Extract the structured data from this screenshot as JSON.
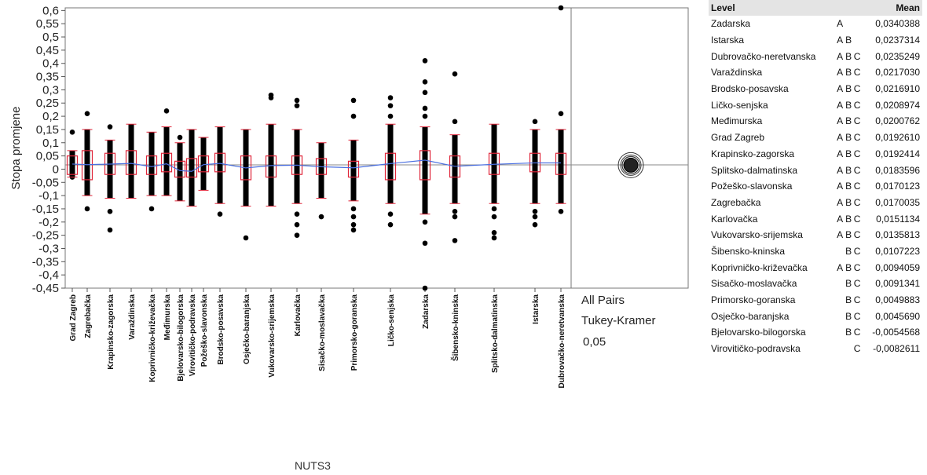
{
  "chart_data": {
    "type": "scatter",
    "ylabel": "Stopa promjene",
    "xlabel": "NUTS3",
    "ylim": [
      -0.45,
      0.61
    ],
    "yticks": [
      "0,6",
      "0,55",
      "0,5",
      "0,45",
      "0,4",
      "0,35",
      "0,3",
      "0,25",
      "0,2",
      "0,15",
      "0,1",
      "0,05",
      "0",
      "-0,05",
      "-0,1",
      "-0,15",
      "-0,2",
      "-0,25",
      "-0,3",
      "-0,35",
      "-0,4",
      "-0,45"
    ],
    "categories": [
      {
        "name": "Grad Zagreb",
        "x": 92,
        "mean": 0.019261,
        "q1": -0.02,
        "q3": 0.05,
        "wlo": -0.03,
        "whi": 0.07,
        "pts": [
          0.14,
          -0.03
        ]
      },
      {
        "name": "Zagrebačka",
        "x": 111,
        "mean": 0.0170035,
        "q1": -0.04,
        "q3": 0.07,
        "wlo": -0.1,
        "whi": 0.15,
        "pts": [
          0.21,
          -0.15
        ]
      },
      {
        "name": "Krapinsko-zagorska",
        "x": 140,
        "mean": 0.0192414,
        "q1": -0.02,
        "q3": 0.06,
        "wlo": -0.11,
        "whi": 0.11,
        "pts": [
          0.16,
          -0.16,
          -0.23
        ]
      },
      {
        "name": "Varaždinska",
        "x": 167,
        "mean": 0.021703,
        "q1": -0.02,
        "q3": 0.07,
        "wlo": -0.11,
        "whi": 0.17,
        "pts": []
      },
      {
        "name": "Koprivničko-križevačka",
        "x": 193,
        "mean": 0.0094059,
        "q1": -0.02,
        "q3": 0.05,
        "wlo": -0.1,
        "whi": 0.14,
        "pts": [
          -0.15
        ]
      },
      {
        "name": "Međimurska",
        "x": 212,
        "mean": 0.0200762,
        "q1": -0.01,
        "q3": 0.06,
        "wlo": -0.1,
        "whi": 0.16,
        "pts": [
          0.22
        ]
      },
      {
        "name": "Bjelovarsko-bilogorska",
        "x": 229,
        "mean": -0.0054568,
        "q1": -0.03,
        "q3": 0.03,
        "wlo": -0.12,
        "whi": 0.1,
        "pts": [
          0.12
        ]
      },
      {
        "name": "Virovitičko-podravska",
        "x": 244,
        "mean": -0.0082611,
        "q1": -0.03,
        "q3": 0.04,
        "wlo": -0.14,
        "whi": 0.15,
        "pts": []
      },
      {
        "name": "Požeško-slavonska",
        "x": 259,
        "mean": 0.0170123,
        "q1": -0.01,
        "q3": 0.05,
        "wlo": -0.08,
        "whi": 0.12,
        "pts": []
      },
      {
        "name": "Brodsko-posavska",
        "x": 280,
        "mean": 0.021691,
        "q1": -0.01,
        "q3": 0.06,
        "wlo": -0.13,
        "whi": 0.16,
        "pts": [
          -0.17
        ]
      },
      {
        "name": "Osječko-baranjska",
        "x": 313,
        "mean": 0.004569,
        "q1": -0.04,
        "q3": 0.05,
        "wlo": -0.14,
        "whi": 0.15,
        "pts": [
          -0.26
        ]
      },
      {
        "name": "Vukovarsko-srijemska",
        "x": 345,
        "mean": 0.0135813,
        "q1": -0.03,
        "q3": 0.05,
        "wlo": -0.14,
        "whi": 0.17,
        "pts": [
          0.27,
          0.28
        ]
      },
      {
        "name": "Karlovačka",
        "x": 378,
        "mean": 0.0151134,
        "q1": -0.02,
        "q3": 0.05,
        "wlo": -0.13,
        "whi": 0.15,
        "pts": [
          0.24,
          0.26,
          -0.17,
          -0.21,
          -0.25
        ]
      },
      {
        "name": "Sisačko-moslavačka",
        "x": 409,
        "mean": 0.0091341,
        "q1": -0.02,
        "q3": 0.04,
        "wlo": -0.11,
        "whi": 0.1,
        "pts": [
          -0.18
        ]
      },
      {
        "name": "Primorsko-goranska",
        "x": 450,
        "mean": 0.0049883,
        "q1": -0.03,
        "q3": 0.03,
        "wlo": -0.12,
        "whi": 0.11,
        "pts": [
          0.2,
          0.26,
          -0.15,
          -0.18,
          -0.21,
          -0.23
        ]
      },
      {
        "name": "Ličko-senjska",
        "x": 497,
        "mean": 0.0208974,
        "q1": -0.04,
        "q3": 0.06,
        "wlo": -0.13,
        "whi": 0.17,
        "pts": [
          0.2,
          0.24,
          0.27,
          -0.17,
          -0.21
        ]
      },
      {
        "name": "Zadarska",
        "x": 541,
        "mean": 0.0340388,
        "q1": -0.04,
        "q3": 0.07,
        "wlo": -0.17,
        "whi": 0.16,
        "pts": [
          0.2,
          0.23,
          0.29,
          0.33,
          0.41,
          -0.2,
          -0.28,
          -0.45
        ]
      },
      {
        "name": "Šibensko-kninska",
        "x": 579,
        "mean": 0.0107223,
        "q1": -0.03,
        "q3": 0.05,
        "wlo": -0.13,
        "whi": 0.13,
        "pts": [
          0.18,
          0.36,
          -0.16,
          -0.18,
          -0.27
        ]
      },
      {
        "name": "Splitsko-dalmatinska",
        "x": 629,
        "mean": 0.0183596,
        "q1": -0.02,
        "q3": 0.06,
        "wlo": -0.13,
        "whi": 0.17,
        "pts": [
          -0.15,
          -0.18,
          -0.24,
          -0.26
        ]
      },
      {
        "name": "Istarska",
        "x": 681,
        "mean": 0.0237314,
        "q1": -0.01,
        "q3": 0.06,
        "wlo": -0.13,
        "whi": 0.15,
        "pts": [
          0.18,
          -0.16,
          -0.18,
          -0.21
        ]
      },
      {
        "name": "Dubrovačko-neretvanska",
        "x": 714,
        "mean": 0.0235249,
        "q1": -0.02,
        "q3": 0.06,
        "wlo": -0.13,
        "whi": 0.15,
        "pts": [
          0.21,
          0.61,
          -0.16
        ]
      }
    ],
    "comparison": {
      "lines": [
        "All Pairs",
        "Tukey-Kramer",
        "0,05"
      ]
    }
  },
  "table": {
    "headers": {
      "level": "Level",
      "mean": "Mean"
    },
    "rows": [
      {
        "level": "Zadarska",
        "l1": "A",
        "l2": "",
        "l3": "",
        "mean": "0,0340388"
      },
      {
        "level": "Istarska",
        "l1": "A",
        "l2": "B",
        "l3": "",
        "mean": "0,0237314"
      },
      {
        "level": "Dubrovačko-neretvanska",
        "l1": "A",
        "l2": "B",
        "l3": "C",
        "mean": "0,0235249"
      },
      {
        "level": "Varaždinska",
        "l1": "A",
        "l2": "B",
        "l3": "C",
        "mean": "0,0217030"
      },
      {
        "level": "Brodsko-posavska",
        "l1": "A",
        "l2": "B",
        "l3": "C",
        "mean": "0,0216910"
      },
      {
        "level": "Ličko-senjska",
        "l1": "A",
        "l2": "B",
        "l3": "C",
        "mean": "0,0208974"
      },
      {
        "level": "Međimurska",
        "l1": "A",
        "l2": "B",
        "l3": "C",
        "mean": "0,0200762"
      },
      {
        "level": "Grad Zagreb",
        "l1": "A",
        "l2": "B",
        "l3": "C",
        "mean": "0,0192610"
      },
      {
        "level": "Krapinsko-zagorska",
        "l1": "A",
        "l2": "B",
        "l3": "C",
        "mean": "0,0192414"
      },
      {
        "level": "Splitsko-dalmatinska",
        "l1": "A",
        "l2": "B",
        "l3": "C",
        "mean": "0,0183596"
      },
      {
        "level": "Požeško-slavonska",
        "l1": "A",
        "l2": "B",
        "l3": "C",
        "mean": "0,0170123"
      },
      {
        "level": "Zagrebačka",
        "l1": "A",
        "l2": "B",
        "l3": "C",
        "mean": "0,0170035"
      },
      {
        "level": "Karlovačka",
        "l1": "A",
        "l2": "B",
        "l3": "C",
        "mean": "0,0151134"
      },
      {
        "level": "Vukovarsko-srijemska",
        "l1": "A",
        "l2": "B",
        "l3": "C",
        "mean": "0,0135813"
      },
      {
        "level": "Šibensko-kninska",
        "l1": "",
        "l2": "B",
        "l3": "C",
        "mean": "0,0107223"
      },
      {
        "level": "Koprivničko-križevačka",
        "l1": "A",
        "l2": "B",
        "l3": "C",
        "mean": "0,0094059"
      },
      {
        "level": "Sisačko-moslavačka",
        "l1": "",
        "l2": "B",
        "l3": "C",
        "mean": "0,0091341"
      },
      {
        "level": "Primorsko-goranska",
        "l1": "",
        "l2": "B",
        "l3": "C",
        "mean": "0,0049883"
      },
      {
        "level": "Osječko-baranjska",
        "l1": "",
        "l2": "B",
        "l3": "C",
        "mean": "0,0045690"
      },
      {
        "level": "Bjelovarsko-bilogorska",
        "l1": "",
        "l2": "B",
        "l3": "C",
        "mean": "-0,0054568"
      },
      {
        "level": "Virovitičko-podravska",
        "l1": "",
        "l2": "",
        "l3": "C",
        "mean": "-0,0082611"
      }
    ]
  }
}
